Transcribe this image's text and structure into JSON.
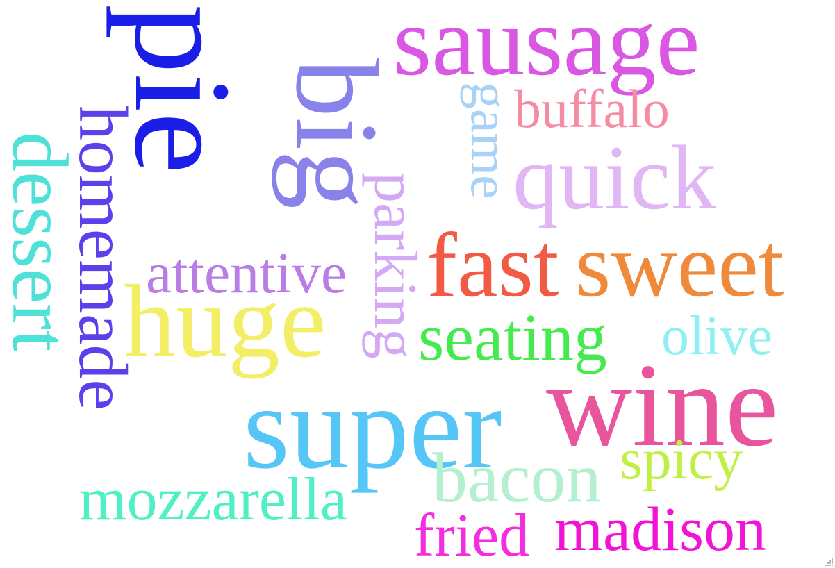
{
  "words": [
    {
      "text": "sausage",
      "color": "#d957e3"
    },
    {
      "text": "buffalo",
      "color": "#f58ca3"
    },
    {
      "text": "game",
      "color": "#a8d2f6"
    },
    {
      "text": "quick",
      "color": "#e0b6f5"
    },
    {
      "text": "pie",
      "color": "#1a1ee6"
    },
    {
      "text": "big",
      "color": "#8882ea"
    },
    {
      "text": "parking",
      "color": "#d4a9f3"
    },
    {
      "text": "homemade",
      "color": "#5b41eb"
    },
    {
      "text": "dessert",
      "color": "#4de1d7"
    },
    {
      "text": "attentive",
      "color": "#b87ee6"
    },
    {
      "text": "huge",
      "color": "#f2ee66"
    },
    {
      "text": "fast",
      "color": "#f25a43"
    },
    {
      "text": "sweet",
      "color": "#ef8a3c"
    },
    {
      "text": "seating",
      "color": "#45ea4e"
    },
    {
      "text": "olive",
      "color": "#8ff0f3"
    },
    {
      "text": "super",
      "color": "#56c6f6"
    },
    {
      "text": "wine",
      "color": "#e9559d"
    },
    {
      "text": "spicy",
      "color": "#c0f044"
    },
    {
      "text": "bacon",
      "color": "#b4f0cf"
    },
    {
      "text": "mozzarella",
      "color": "#4ff0c3"
    },
    {
      "text": "fried",
      "color": "#f42ee0"
    },
    {
      "text": "madison",
      "color": "#f214d6"
    }
  ]
}
